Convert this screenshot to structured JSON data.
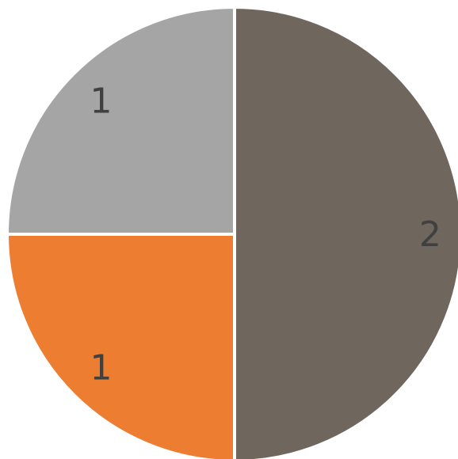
{
  "chart_data": {
    "type": "pie",
    "categories": [
      "",
      "",
      ""
    ],
    "values": [
      2,
      1,
      1
    ],
    "data_labels": [
      "2",
      "1",
      "1"
    ],
    "colors": [
      "#6f665e",
      "#ed7d31",
      "#a5a5a5"
    ],
    "title": "",
    "legend": "none"
  }
}
